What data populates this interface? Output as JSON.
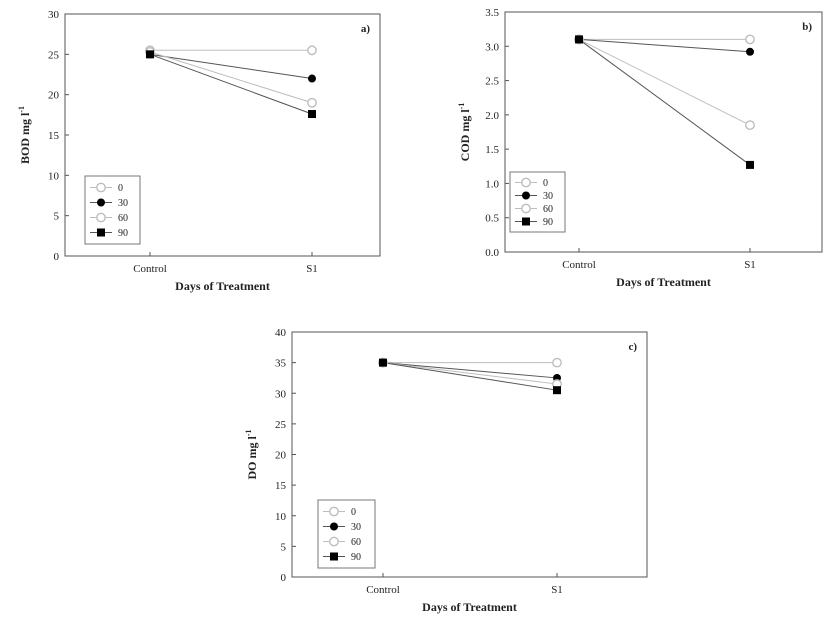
{
  "chart_data": [
    {
      "type": "line",
      "panel_label": "a)",
      "xlabel": "Days of Treatment",
      "ylabel": "BOD mg l",
      "ylabel_superscript": "-1",
      "categories": [
        "Control",
        "S1"
      ],
      "ylim": [
        0,
        30
      ],
      "yticks": [
        "0",
        "5",
        "10",
        "15",
        "20",
        "25",
        "30"
      ],
      "legend_position": "bottom-left",
      "series": [
        {
          "name": "0",
          "values": [
            25.5,
            25.5
          ],
          "marker": "circle-open",
          "color": "#bdbdbd"
        },
        {
          "name": "30",
          "values": [
            25.0,
            22.0
          ],
          "marker": "circle-filled",
          "color": "#000000"
        },
        {
          "name": "60",
          "values": [
            25.3,
            19.0
          ],
          "marker": "circle-open",
          "color": "#bdbdbd"
        },
        {
          "name": "90",
          "values": [
            25.0,
            17.6
          ],
          "marker": "square-filled",
          "color": "#000000"
        }
      ]
    },
    {
      "type": "line",
      "panel_label": "b)",
      "xlabel": "Days of Treatment",
      "ylabel": "COD mg l",
      "ylabel_superscript": "-1",
      "categories": [
        "Control",
        "S1"
      ],
      "ylim": [
        0,
        3.5
      ],
      "yticks": [
        "0.0",
        "0.5",
        "1.0",
        "1.5",
        "2.0",
        "2.5",
        "3.0",
        "3.5"
      ],
      "legend_position": "bottom-left",
      "series": [
        {
          "name": "0",
          "values": [
            3.1,
            3.1
          ],
          "marker": "circle-open",
          "color": "#bdbdbd"
        },
        {
          "name": "30",
          "values": [
            3.1,
            2.92
          ],
          "marker": "circle-filled",
          "color": "#000000"
        },
        {
          "name": "60",
          "values": [
            3.1,
            1.85
          ],
          "marker": "circle-open",
          "color": "#bdbdbd"
        },
        {
          "name": "90",
          "values": [
            3.1,
            1.27
          ],
          "marker": "square-filled",
          "color": "#000000"
        }
      ]
    },
    {
      "type": "line",
      "panel_label": "c)",
      "xlabel": "Days of Treatment",
      "ylabel": "DO mg l",
      "ylabel_superscript": "-1",
      "categories": [
        "Control",
        "S1"
      ],
      "ylim": [
        0,
        40
      ],
      "yticks": [
        "0",
        "5",
        "10",
        "15",
        "20",
        "25",
        "30",
        "35",
        "40"
      ],
      "legend_position": "bottom-left",
      "series": [
        {
          "name": "0",
          "values": [
            35.0,
            35.0
          ],
          "marker": "circle-open",
          "color": "#bdbdbd"
        },
        {
          "name": "30",
          "values": [
            35.0,
            32.5
          ],
          "marker": "circle-filled",
          "color": "#000000"
        },
        {
          "name": "60",
          "values": [
            35.0,
            31.5
          ],
          "marker": "circle-open",
          "color": "#bdbdbd"
        },
        {
          "name": "90",
          "values": [
            35.0,
            30.5
          ],
          "marker": "square-filled",
          "color": "#000000"
        }
      ]
    }
  ]
}
